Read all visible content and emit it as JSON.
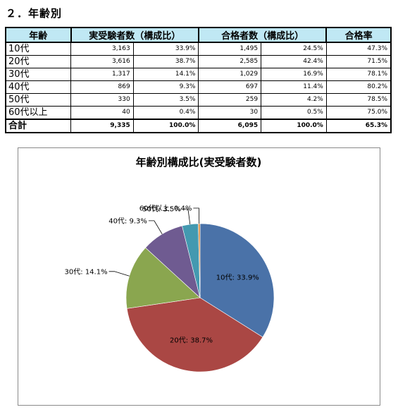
{
  "section_title": "２．年齢別",
  "table": {
    "headers": [
      "年齢",
      "実受験者数（構成比）",
      "合格者数（構成比）",
      "合格率"
    ],
    "rows": [
      {
        "age": "10代",
        "examinees": "3,163",
        "examinees_pct": "33.9%",
        "passers": "1,495",
        "passers_pct": "24.5%",
        "rate": "47.3%"
      },
      {
        "age": "20代",
        "examinees": "3,616",
        "examinees_pct": "38.7%",
        "passers": "2,585",
        "passers_pct": "42.4%",
        "rate": "71.5%"
      },
      {
        "age": "30代",
        "examinees": "1,317",
        "examinees_pct": "14.1%",
        "passers": "1,029",
        "passers_pct": "16.9%",
        "rate": "78.1%"
      },
      {
        "age": "40代",
        "examinees": "869",
        "examinees_pct": "9.3%",
        "passers": "697",
        "passers_pct": "11.4%",
        "rate": "80.2%"
      },
      {
        "age": "50代",
        "examinees": "330",
        "examinees_pct": "3.5%",
        "passers": "259",
        "passers_pct": "4.2%",
        "rate": "78.5%"
      },
      {
        "age": "60代以上",
        "examinees": "40",
        "examinees_pct": "0.4%",
        "passers": "30",
        "passers_pct": "0.5%",
        "rate": "75.0%"
      }
    ],
    "total": {
      "age": "合計",
      "examinees": "9,335",
      "examinees_pct": "100.0%",
      "passers": "6,095",
      "passers_pct": "100.0%",
      "rate": "65.3%"
    }
  },
  "chart_data": {
    "type": "pie",
    "title": "年齢別構成比(実受験者数)",
    "categories": [
      "10代",
      "20代",
      "30代",
      "40代",
      "50代",
      "60代以上"
    ],
    "values": [
      33.9,
      38.7,
      14.1,
      9.3,
      3.5,
      0.4
    ],
    "labels": [
      "10代: 33.9%",
      "20代: 38.7%",
      "30代: 14.1%",
      "40代: 9.3%",
      "50代: 3.5%",
      "60代以上: 0.4%"
    ],
    "colors": [
      "#4a72a8",
      "#aa4744",
      "#8aa64f",
      "#6f5b91",
      "#4399b0",
      "#dd8a3a"
    ]
  }
}
